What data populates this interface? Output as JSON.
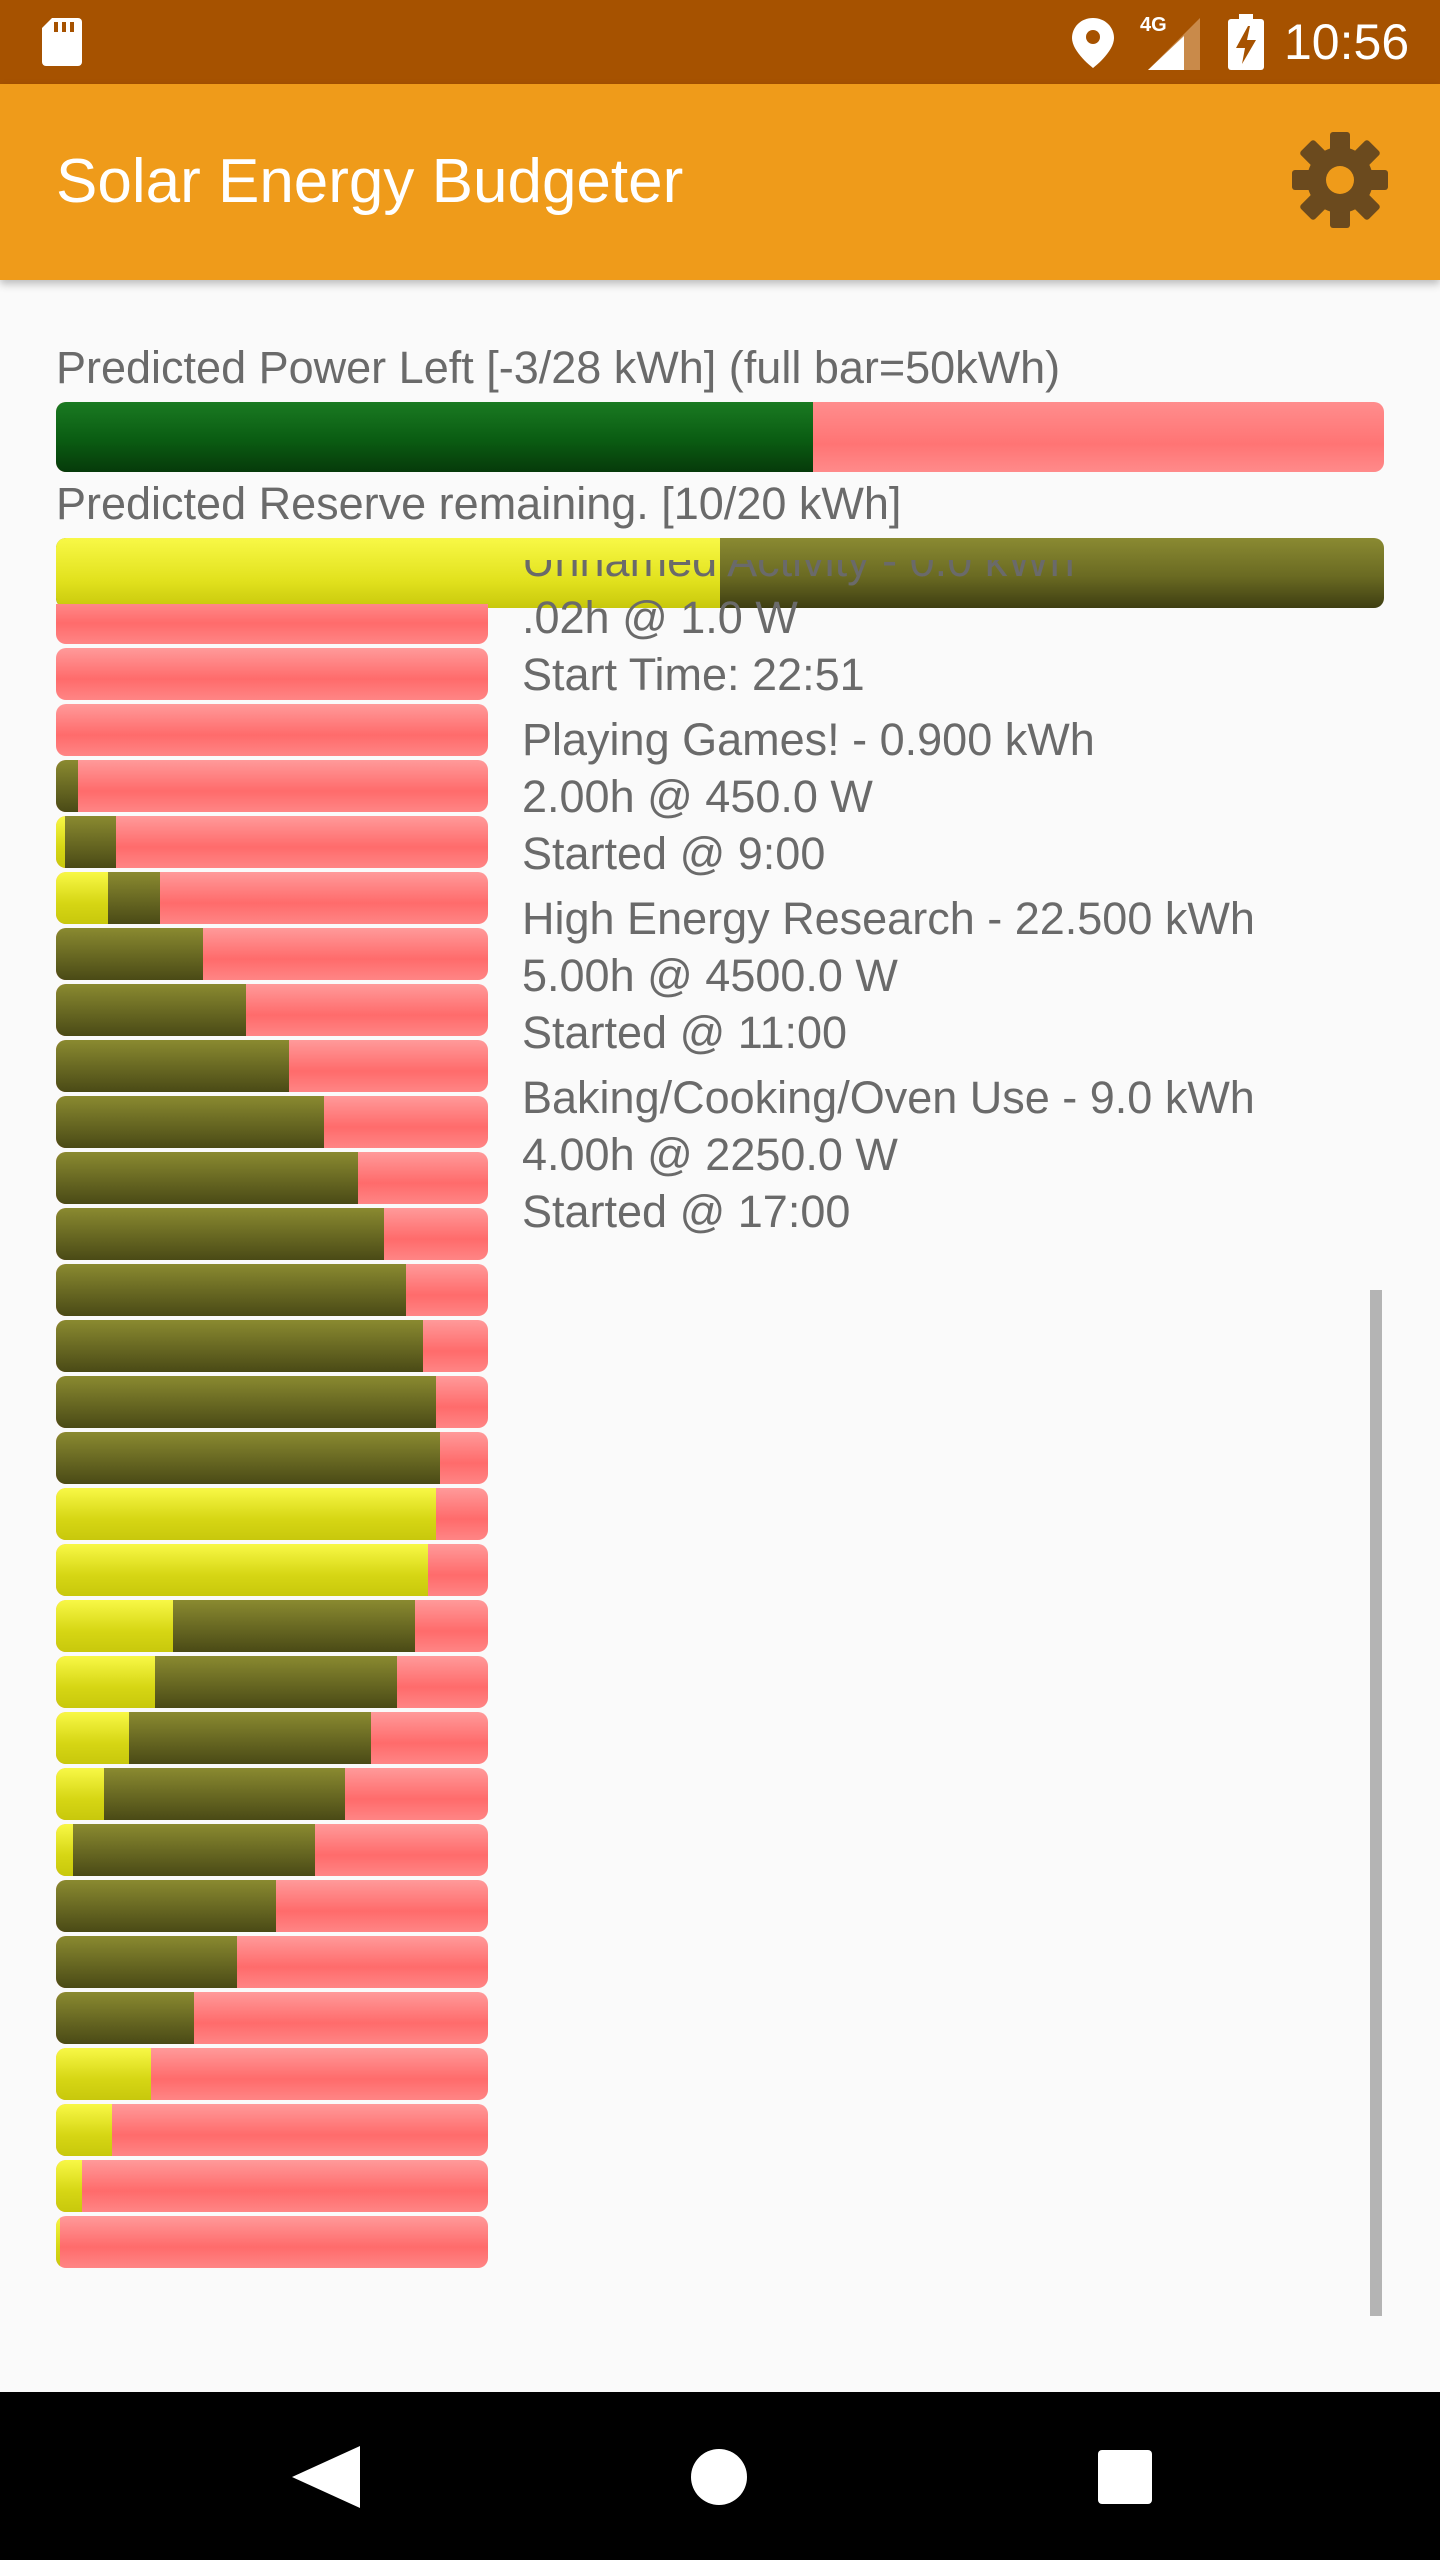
{
  "status_bar": {
    "time": "10:56",
    "network_label": "4G",
    "icons": [
      "sd-card-icon",
      "location-icon",
      "signal-icon",
      "battery-charging-icon"
    ]
  },
  "app_bar": {
    "title": "Solar Energy Budgeter",
    "settings_icon": "gear-icon",
    "color": "#ef9b1a"
  },
  "power": {
    "label": "Predicted Power Left [-3/28 kWh] (full bar=50kWh)",
    "fill_fraction": 0.57,
    "fill_color": "#0a5c12",
    "empty_color": "#ff7474"
  },
  "reserve": {
    "label": "Predicted Reserve remaining. [10/20 kWh]",
    "fill_fraction": 0.5,
    "fill_color": "#e2e21e",
    "empty_color": "#6a6a22"
  },
  "hourly_chart": {
    "type": "stacked horizontal bars",
    "note": "each row: yellow (solar) fraction, olive fraction, remaining red",
    "rows": [
      {
        "y": 0.0,
        "o": 0.0
      },
      {
        "y": 0.0,
        "o": 0.0
      },
      {
        "y": 0.0,
        "o": 0.0
      },
      {
        "y": 0.0,
        "o": 0.05
      },
      {
        "y": 0.02,
        "o": 0.12
      },
      {
        "y": 0.12,
        "o": 0.12
      },
      {
        "y": 0.0,
        "o": 0.34
      },
      {
        "y": 0.0,
        "o": 0.44
      },
      {
        "y": 0.0,
        "o": 0.54
      },
      {
        "y": 0.0,
        "o": 0.62
      },
      {
        "y": 0.0,
        "o": 0.7
      },
      {
        "y": 0.0,
        "o": 0.76
      },
      {
        "y": 0.0,
        "o": 0.81
      },
      {
        "y": 0.0,
        "o": 0.85
      },
      {
        "y": 0.0,
        "o": 0.88
      },
      {
        "y": 0.0,
        "o": 0.89
      },
      {
        "y": 0.88,
        "o": 0.0
      },
      {
        "y": 0.86,
        "o": 0.0
      },
      {
        "y": 0.27,
        "o": 0.56
      },
      {
        "y": 0.23,
        "o": 0.56
      },
      {
        "y": 0.17,
        "o": 0.56
      },
      {
        "y": 0.11,
        "o": 0.56
      },
      {
        "y": 0.04,
        "o": 0.56
      },
      {
        "y": 0.0,
        "o": 0.51
      },
      {
        "y": 0.0,
        "o": 0.42
      },
      {
        "y": 0.0,
        "o": 0.32
      },
      {
        "y": 0.22,
        "o": 0.0
      },
      {
        "y": 0.13,
        "o": 0.0
      },
      {
        "y": 0.06,
        "o": 0.0
      },
      {
        "y": 0.01,
        "o": 0.0
      }
    ]
  },
  "activities": [
    {
      "name": "Unnamed Activity - 0.0 kWh",
      "duration": ".02h @ 1.0 W",
      "start": " Start Time: 22:51"
    },
    {
      "name": "Playing Games! - 0.900 kWh",
      "duration": "2.00h @ 450.0 W",
      "start": " Started @ 9:00"
    },
    {
      "name": "High Energy Research - 22.500 kWh",
      "duration": "5.00h @ 4500.0 W",
      "start": " Started @ 11:00"
    },
    {
      "name": "Baking/Cooking/Oven Use - 9.0 kWh",
      "duration": "4.00h @ 2250.0 W",
      "start": " Started @ 17:00"
    }
  ],
  "nav_bar": {
    "icons": [
      "back-icon",
      "home-icon",
      "recents-icon"
    ]
  }
}
